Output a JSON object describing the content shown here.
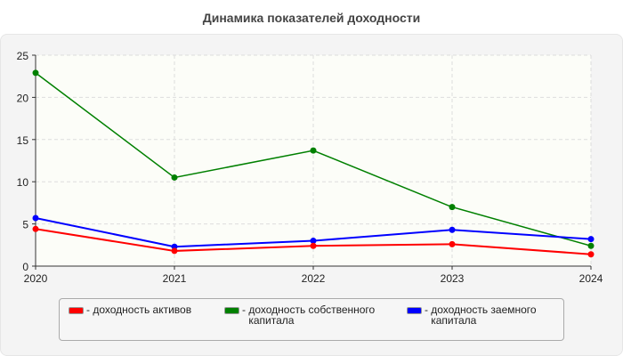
{
  "chart_data": {
    "type": "line",
    "title": "Динамика показателей доходности",
    "categories": [
      "2020",
      "2021",
      "2022",
      "2023",
      "2024"
    ],
    "ylim": [
      0,
      25
    ],
    "yticks": [
      0,
      5,
      10,
      15,
      20,
      25
    ],
    "grid": true,
    "legend_position": "bottom",
    "series": [
      {
        "name": "доходность активов",
        "color": "#ff0000",
        "values": [
          4.4,
          1.8,
          2.4,
          2.6,
          1.4
        ]
      },
      {
        "name": "доходность собственного капитала",
        "color": "#008000",
        "values": [
          22.9,
          10.5,
          13.7,
          7.0,
          2.4
        ]
      },
      {
        "name": "доходность заемного капитала",
        "color": "#0000ff",
        "values": [
          5.7,
          2.3,
          3.0,
          4.3,
          3.2
        ]
      }
    ]
  }
}
